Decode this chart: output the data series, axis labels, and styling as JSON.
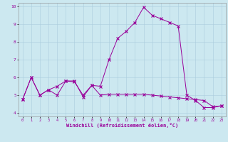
{
  "xlabel": "Windchill (Refroidissement éolien,°C)",
  "bg_color": "#cce8f0",
  "line_color": "#990099",
  "grid_color": "#aaccdd",
  "xlim": [
    -0.5,
    23.5
  ],
  "ylim": [
    3.8,
    10.2
  ],
  "xticks": [
    0,
    1,
    2,
    3,
    4,
    5,
    6,
    7,
    8,
    9,
    10,
    11,
    12,
    13,
    14,
    15,
    16,
    17,
    18,
    19,
    20,
    21,
    22,
    23
  ],
  "yticks": [
    4,
    5,
    6,
    7,
    8,
    9,
    10
  ],
  "series1_x": [
    0,
    1,
    2,
    3,
    4,
    5,
    6,
    7,
    8,
    9,
    10,
    11,
    12,
    13,
    14,
    15,
    16,
    17,
    18,
    19,
    20,
    21,
    22,
    23
  ],
  "series1_y": [
    4.75,
    6.0,
    5.0,
    5.3,
    5.0,
    5.8,
    5.8,
    4.9,
    5.55,
    5.0,
    5.05,
    5.05,
    5.05,
    5.05,
    5.05,
    5.0,
    4.95,
    4.9,
    4.85,
    4.8,
    4.75,
    4.7,
    4.35,
    4.4
  ],
  "series2_x": [
    0,
    1,
    2,
    3,
    4,
    5,
    6,
    7,
    8,
    9,
    10,
    11,
    12,
    13,
    14,
    15,
    16,
    17,
    18,
    19,
    20,
    21,
    22,
    23
  ],
  "series2_y": [
    4.75,
    6.0,
    5.0,
    5.3,
    5.5,
    5.8,
    5.75,
    5.0,
    5.55,
    5.5,
    7.0,
    8.2,
    8.6,
    9.1,
    9.95,
    9.5,
    9.3,
    9.1,
    8.9,
    5.0,
    4.7,
    4.3,
    4.3,
    4.4
  ]
}
